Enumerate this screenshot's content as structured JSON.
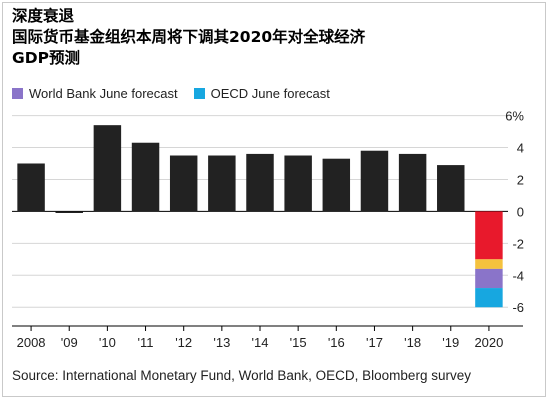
{
  "title": "深度衰退\n国际货币基金组织本周将下调其2020年对全球经济\nGDP预测",
  "legend": [
    {
      "label": "World Bank June forecast",
      "color": "#8a74c9"
    },
    {
      "label": "OECD June forecast",
      "color": "#17a7e0"
    }
  ],
  "source": "Source: International Monetary Fund, World Bank, OECD, Bloomberg survey",
  "chart_data": {
    "type": "bar",
    "categories": [
      "2008",
      "'09",
      "'10",
      "'11",
      "'12",
      "'13",
      "'14",
      "'15",
      "'16",
      "'17",
      "'18",
      "'19",
      "2020"
    ],
    "values": [
      3.0,
      -0.1,
      5.4,
      4.3,
      3.5,
      3.5,
      3.6,
      3.5,
      3.3,
      3.8,
      3.6,
      2.9,
      null
    ],
    "y_tick_labels": [
      "6%",
      "4",
      "2",
      "0",
      "-2",
      "-4",
      "-6"
    ],
    "y_ticks": [
      6,
      4,
      2,
      0,
      -2,
      -4,
      -6
    ],
    "ylim": [
      -6.8,
      6.6
    ],
    "bar_color": "#222222",
    "forecast_2020_segments": [
      {
        "from": 0,
        "to": -3.0,
        "color": "#e8192c"
      },
      {
        "from": -3.0,
        "to": -3.6,
        "color": "#f5c23e"
      },
      {
        "from": -3.6,
        "to": -4.8,
        "color": "#8a74c9"
      },
      {
        "from": -4.8,
        "to": -6.0,
        "color": "#17a7e0"
      }
    ],
    "grid": "horizontal"
  }
}
